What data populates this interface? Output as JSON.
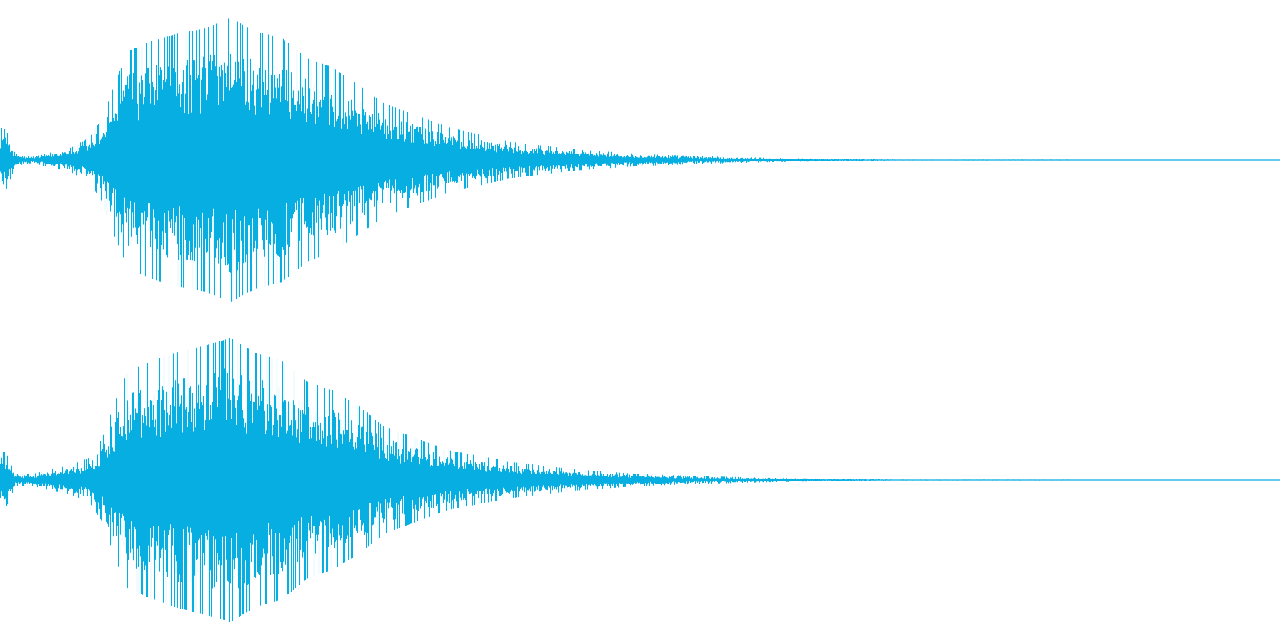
{
  "colors": {
    "background": "#ffffff",
    "waveform": "#06aee2"
  },
  "chart_data": {
    "type": "area",
    "layout": "stacked-channels",
    "grid": false,
    "legend": "none",
    "title": "",
    "xlabel": "",
    "ylabel": "",
    "xlim": [
      0,
      1
    ],
    "ylim": [
      -1,
      1
    ],
    "x": [
      0,
      0.005,
      0.012,
      0.025,
      0.04,
      0.055,
      0.07,
      0.08,
      0.09,
      0.1,
      0.12,
      0.14,
      0.16,
      0.18,
      0.2,
      0.22,
      0.24,
      0.26,
      0.28,
      0.3,
      0.35,
      0.4,
      0.45,
      0.5,
      0.55,
      0.6,
      0.65,
      0.7,
      1
    ],
    "series": [
      {
        "channel": 1,
        "envelope": [
          0.22,
          0.2,
          0.04,
          0.02,
          0.05,
          0.08,
          0.15,
          0.28,
          0.52,
          0.73,
          0.8,
          0.85,
          0.88,
          0.95,
          0.86,
          0.82,
          0.68,
          0.62,
          0.5,
          0.38,
          0.22,
          0.12,
          0.07,
          0.04,
          0.025,
          0.015,
          0.008,
          0.004,
          0.002
        ]
      },
      {
        "channel": 2,
        "envelope": [
          0.2,
          0.18,
          0.04,
          0.04,
          0.07,
          0.1,
          0.15,
          0.28,
          0.53,
          0.73,
          0.8,
          0.86,
          0.9,
          0.95,
          0.85,
          0.8,
          0.66,
          0.6,
          0.5,
          0.36,
          0.2,
          0.12,
          0.07,
          0.04,
          0.025,
          0.015,
          0.008,
          0.004,
          0.002
        ]
      }
    ]
  }
}
